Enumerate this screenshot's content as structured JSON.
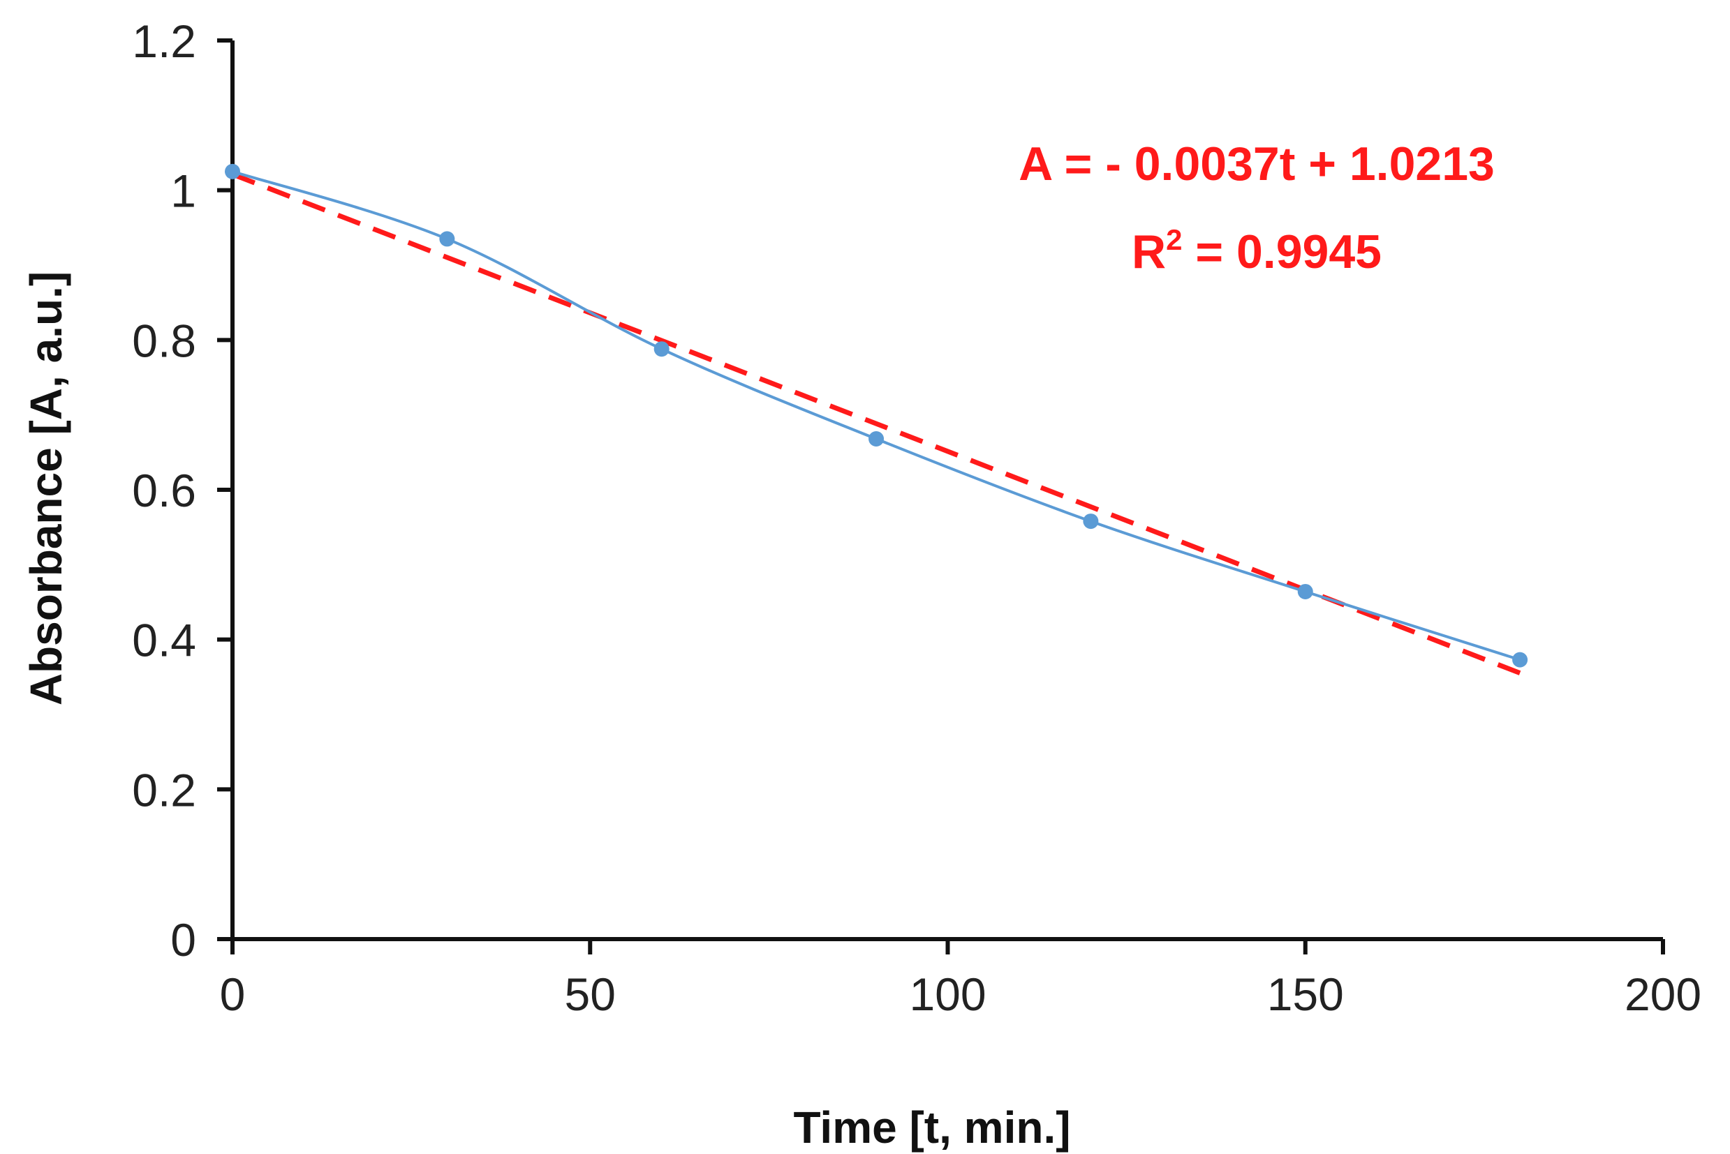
{
  "chart_data": {
    "type": "scatter",
    "title": "",
    "xlabel": "Time [t, min.]",
    "ylabel": "Absorbance [A, a.u.]",
    "xlim": [
      0,
      200
    ],
    "ylim": [
      0,
      1.2
    ],
    "x_ticks": [
      0,
      50,
      100,
      150,
      200
    ],
    "y_ticks": [
      0,
      0.2,
      0.4,
      0.6,
      0.8,
      1,
      1.2
    ],
    "x_tick_labels": [
      "0",
      "50",
      "100",
      "150",
      "200"
    ],
    "y_tick_labels": [
      "0",
      "0.2",
      "0.4",
      "0.6",
      "0.8",
      "1",
      "1.2"
    ],
    "grid": false,
    "legend": "none",
    "series": [
      {
        "x": [
          0,
          30,
          60,
          90,
          120,
          150,
          180
        ],
        "y": [
          1.025,
          0.935,
          0.788,
          0.668,
          0.558,
          0.464,
          0.373
        ],
        "line": "smooth",
        "color": "#5b9bd5"
      }
    ],
    "trendline": {
      "slope": -0.0037,
      "intercept": 1.0213,
      "x_range": [
        0,
        180
      ],
      "color": "#ff1a1a",
      "style": "dashed",
      "equation": "A = - 0.0037t + 1.0213",
      "r2_prefix": "R",
      "r2_sup": "2",
      "r2_suffix": " = 0.9945"
    }
  }
}
